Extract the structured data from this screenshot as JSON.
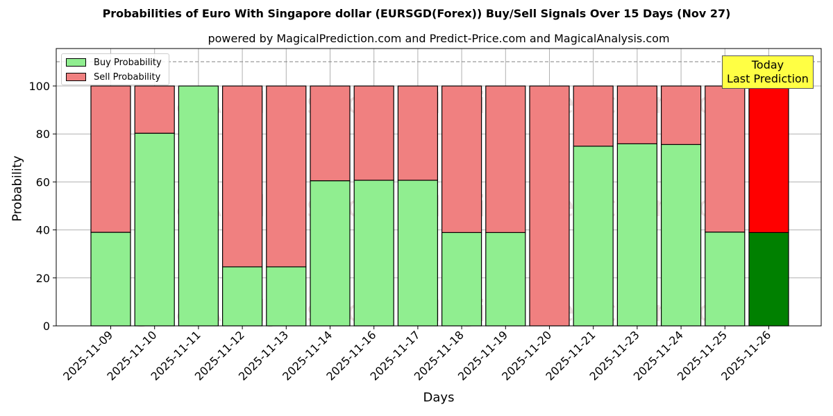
{
  "header": {
    "title": "Probabilities of Euro With Singapore dollar (EURSGD(Forex)) Buy/Sell Signals Over 15 Days (Nov 27)",
    "subtitle": "powered by MagicalPrediction.com and Predict-Price.com and MagicalAnalysis.com"
  },
  "axes": {
    "xlabel": "Days",
    "ylabel": "Probability",
    "yticks": [
      "0",
      "20",
      "40",
      "60",
      "80",
      "100"
    ]
  },
  "legend": {
    "buy_label": "Buy Probability",
    "sell_label": "Sell Probability"
  },
  "annotation": {
    "line1": "Today",
    "line2": "Last Prediction"
  },
  "watermarks": [
    "MagicalAnalysis.com",
    "MagicalPrediction.com"
  ],
  "colors": {
    "buy": "#90ee90",
    "sell": "#f08080",
    "buy_today": "#008000",
    "sell_today": "#ff0000",
    "annotation_bg": "#ffff44",
    "grid": "#b0b0b0"
  },
  "chart_data": {
    "type": "bar",
    "stacked": true,
    "title": "Probabilities of Euro With Singapore dollar (EURSGD(Forex)) Buy/Sell Signals Over 15 Days (Nov 27)",
    "subtitle": "powered by MagicalPrediction.com and Predict-Price.com and MagicalAnalysis.com",
    "xlabel": "Days",
    "ylabel": "Probability",
    "ylim": [
      0,
      115.6
    ],
    "yticks": [
      0,
      20,
      40,
      60,
      80,
      100
    ],
    "grid": true,
    "legend_position": "upper left",
    "reference_line": {
      "y": 110,
      "style": "dashed",
      "color": "#808080"
    },
    "annotation": {
      "text": "Today\nLast Prediction",
      "category": "2025-11-26"
    },
    "categories": [
      "2025-11-09",
      "2025-11-10",
      "2025-11-11",
      "2025-11-12",
      "2025-11-13",
      "2025-11-14",
      "2025-11-16",
      "2025-11-17",
      "2025-11-18",
      "2025-11-19",
      "2025-11-20",
      "2025-11-21",
      "2025-11-23",
      "2025-11-24",
      "2025-11-25",
      "2025-11-26"
    ],
    "series": [
      {
        "name": "Buy Probability",
        "values": [
          39.0,
          80.3,
          100.0,
          24.6,
          24.6,
          60.5,
          60.7,
          60.7,
          38.9,
          38.9,
          0.0,
          74.9,
          75.9,
          75.6,
          39.1,
          38.9
        ]
      },
      {
        "name": "Sell Probability",
        "values": [
          61.0,
          19.7,
          0.0,
          75.4,
          75.4,
          39.5,
          39.3,
          39.3,
          61.1,
          61.1,
          100.0,
          25.1,
          24.1,
          24.4,
          60.9,
          61.1
        ]
      }
    ]
  }
}
